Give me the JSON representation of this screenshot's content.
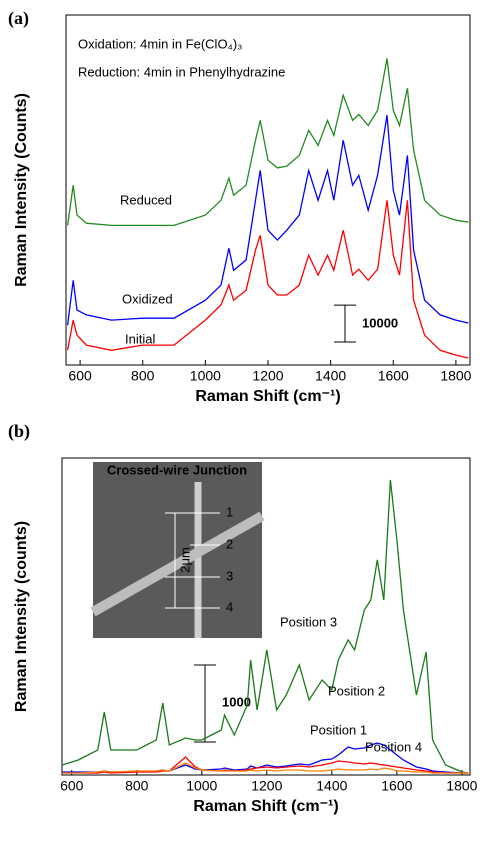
{
  "chart_data": [
    {
      "type": "line",
      "panel_label": "(a)",
      "annotations": [
        "Oxidation: 4min in Fe(ClO₄)₃",
        "Reduction: 4min in Phenylhydrazine"
      ],
      "x_label": "Raman Shift (cm⁻¹)",
      "y_label": "Raman Intensity (Counts)",
      "xlim": [
        555,
        1845
      ],
      "ylim": [
        0,
        95000
      ],
      "xticks": [
        600,
        800,
        1000,
        1200,
        1400,
        1600,
        1800
      ],
      "scale_bar": 10000,
      "x": [
        560,
        578,
        590,
        620,
        700,
        800,
        900,
        1000,
        1050,
        1075,
        1090,
        1130,
        1160,
        1175,
        1200,
        1230,
        1260,
        1300,
        1330,
        1360,
        1390,
        1410,
        1440,
        1470,
        1490,
        1520,
        1550,
        1580,
        1600,
        1620,
        1645,
        1665,
        1700,
        1750,
        1800,
        1840
      ],
      "series": [
        {
          "name": "Initial",
          "color": "#ff0000",
          "values": [
            4000,
            12200,
            8100,
            5400,
            4000,
            5400,
            5400,
            12200,
            16300,
            21700,
            17600,
            20300,
            31200,
            35200,
            21700,
            19000,
            19000,
            21700,
            29800,
            24400,
            29800,
            25700,
            36600,
            24400,
            26000,
            23000,
            26000,
            44700,
            29800,
            24400,
            44700,
            17600,
            8100,
            4000,
            2700,
            1900
          ]
        },
        {
          "name": "Oxidized",
          "color": "#0000ff",
          "values": [
            10800,
            23000,
            14900,
            13600,
            12200,
            12700,
            12700,
            17600,
            21700,
            31700,
            25700,
            28500,
            44700,
            52800,
            36600,
            33900,
            36600,
            40700,
            52800,
            44700,
            52800,
            44700,
            61000,
            48800,
            51500,
            42000,
            51500,
            67800,
            47400,
            40700,
            56900,
            31200,
            17600,
            13600,
            12200,
            11400
          ]
        },
        {
          "name": "Reduced",
          "color": "#228b22",
          "values": [
            37900,
            48800,
            40700,
            38500,
            37900,
            37900,
            37900,
            40700,
            44700,
            50700,
            46100,
            48800,
            61000,
            66400,
            55600,
            53500,
            54000,
            56900,
            63700,
            59600,
            66400,
            62300,
            73200,
            66400,
            68000,
            65000,
            69100,
            83200,
            69100,
            65000,
            75100,
            58300,
            44700,
            40700,
            39300,
            38800
          ]
        }
      ]
    },
    {
      "type": "line",
      "panel_label": "(b)",
      "x_label": "Raman Shift (cm⁻¹)",
      "y_label": "Raman Intensity (counts)",
      "xlim": [
        570,
        1825
      ],
      "ylim": [
        0,
        4120
      ],
      "xticks": [
        600,
        800,
        1000,
        1200,
        1400,
        1600,
        1800
      ],
      "scale_bar": 1000,
      "inset": {
        "title": "Crossed-wire Junction",
        "scale_label": "2μm",
        "markers": [
          "1",
          "2",
          "3",
          "4"
        ]
      },
      "x": [
        570,
        620,
        680,
        700,
        720,
        800,
        860,
        880,
        900,
        950,
        980,
        1000,
        1060,
        1070,
        1100,
        1140,
        1150,
        1170,
        1200,
        1230,
        1260,
        1300,
        1330,
        1370,
        1400,
        1420,
        1450,
        1470,
        1500,
        1520,
        1540,
        1560,
        1580,
        1600,
        1620,
        1660,
        1690,
        1710,
        1750,
        1800,
        1820
      ],
      "series": [
        {
          "name": "Position 3",
          "color": "#1a7a1a",
          "values": [
            130,
            195,
            325,
            819,
            325,
            325,
            455,
            936,
            390,
            481,
            455,
            455,
            585,
            780,
            520,
            910,
            1495,
            845,
            1625,
            845,
            1040,
            1430,
            975,
            1235,
            1105,
            1495,
            1755,
            1625,
            2145,
            2275,
            2795,
            2275,
            3835,
            3055,
            2145,
            1040,
            1599,
            455,
            130,
            39,
            26
          ]
        },
        {
          "name": "Position 2",
          "color": "#0000ff",
          "values": [
            39,
            39,
            39,
            52,
            39,
            39,
            52,
            65,
            52,
            130,
            78,
            65,
            78,
            91,
            65,
            78,
            117,
            91,
            130,
            104,
            117,
            143,
            130,
            195,
            208,
            260,
            364,
            338,
            351,
            390,
            416,
            390,
            325,
            260,
            195,
            104,
            78,
            52,
            39,
            26,
            26
          ]
        },
        {
          "name": "Position 1",
          "color": "#ff0000",
          "values": [
            26,
            26,
            26,
            39,
            26,
            39,
            39,
            52,
            52,
            234,
            104,
            65,
            52,
            65,
            52,
            65,
            78,
            91,
            104,
            91,
            104,
            117,
            104,
            130,
            156,
            182,
            169,
            156,
            143,
            156,
            143,
            130,
            117,
            104,
            91,
            65,
            52,
            39,
            26,
            26,
            26
          ]
        },
        {
          "name": "Position 4",
          "color": "#ff8000",
          "values": [
            26,
            26,
            39,
            52,
            39,
            52,
            52,
            65,
            52,
            156,
            91,
            65,
            52,
            52,
            52,
            52,
            65,
            52,
            65,
            52,
            65,
            65,
            52,
            52,
            65,
            78,
            65,
            65,
            65,
            78,
            65,
            91,
            78,
            52,
            52,
            39,
            39,
            26,
            26,
            26,
            26
          ]
        }
      ]
    }
  ]
}
